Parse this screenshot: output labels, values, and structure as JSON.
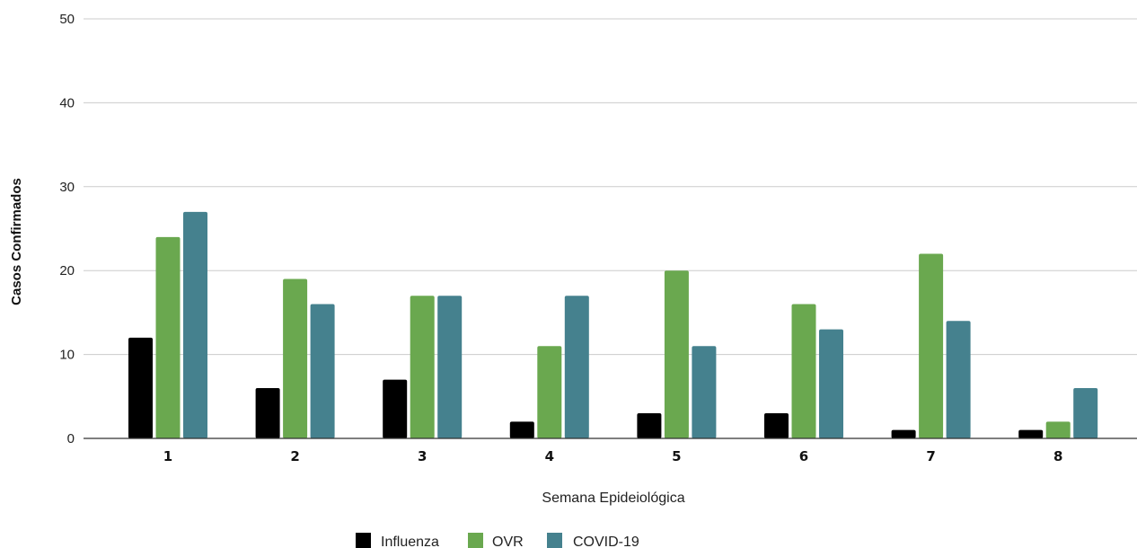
{
  "chart_data": {
    "type": "bar",
    "categories": [
      "1",
      "2",
      "3",
      "4",
      "5",
      "6",
      "7",
      "8"
    ],
    "series": [
      {
        "name": "Influenza",
        "color": "#000000",
        "values": [
          12,
          6,
          7,
          2,
          3,
          3,
          1,
          1
        ]
      },
      {
        "name": "OVR",
        "color": "#6aa84f",
        "values": [
          24,
          19,
          17,
          11,
          20,
          16,
          22,
          2
        ]
      },
      {
        "name": "COVID-19",
        "color": "#45818e",
        "values": [
          27,
          16,
          17,
          17,
          11,
          13,
          14,
          6
        ]
      }
    ],
    "xlabel": "Semana Epideiológica",
    "ylabel": "Casos Confirmados",
    "ylim": [
      0,
      50
    ],
    "yticks": [
      "0",
      "10",
      "20",
      "30",
      "40",
      "50"
    ],
    "grid": true,
    "legend_position": "bottom"
  }
}
